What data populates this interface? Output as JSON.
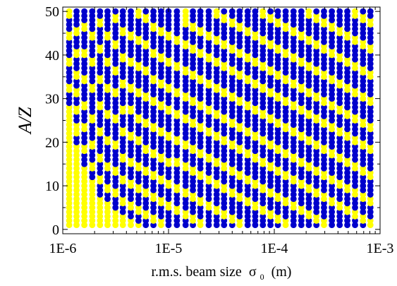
{
  "chart_data": {
    "type": "scatter",
    "title": "",
    "xlabel": "r.m.s. beam size",
    "xlabel_symbol": "σ",
    "xlabel_subscript": "0",
    "xlabel_unit": "(m)",
    "ylabel": "A/Z",
    "x_scale": "log",
    "xlim": [
      1e-06,
      0.001
    ],
    "ylim": [
      -1,
      51
    ],
    "x_ticks": [
      {
        "value": 1e-06,
        "label": "1E-6"
      },
      {
        "value": 1e-05,
        "label": "1E-5"
      },
      {
        "value": 0.0001,
        "label": "1E-4"
      },
      {
        "value": 0.001,
        "label": "1E-3"
      }
    ],
    "y_ticks": [
      {
        "value": 0,
        "label": "0"
      },
      {
        "value": 10,
        "label": "10"
      },
      {
        "value": 20,
        "label": "20"
      },
      {
        "value": 30,
        "label": "30"
      },
      {
        "value": 40,
        "label": "40"
      },
      {
        "value": 50,
        "label": "50"
      }
    ],
    "grid": false,
    "legend": "none",
    "colors": {
      "blue": "#0000cc",
      "yellow": "#ffff00"
    },
    "y_range": [
      1,
      50
    ],
    "x": [
      1.15e-06,
      1.35e-06,
      1.6e-06,
      1.9e-06,
      2.25e-06,
      2.65e-06,
      3.15e-06,
      3.7e-06,
      4.4e-06,
      5.2e-06,
      6.1e-06,
      7.2e-06,
      8.5e-06,
      1e-05,
      1.2e-05,
      1.45e-05,
      1.7e-05,
      2e-05,
      2.4e-05,
      2.85e-05,
      3.35e-05,
      4e-05,
      4.7e-05,
      5.6e-05,
      6.6e-05,
      7.8e-05,
      9.2e-05,
      0.000108,
      0.000128,
      0.000152,
      0.00018,
      0.000212,
      0.00025,
      0.000295,
      0.00035,
      0.000415,
      0.00049,
      0.00058,
      0.00069,
      0.00081
    ],
    "yellow_ranges": [
      [
        [
          1,
          28
        ],
        [
          32,
          33
        ],
        [
          38,
          39
        ],
        [
          44,
          45
        ],
        [
          49,
          50
        ]
      ],
      [
        [
          1,
          19
        ],
        [
          22,
          24
        ],
        [
          27,
          28
        ],
        [
          31,
          32
        ],
        [
          35,
          36
        ],
        [
          40,
          41
        ],
        [
          45,
          46
        ]
      ],
      [
        [
          1,
          14
        ],
        [
          18,
          19
        ],
        [
          23,
          24
        ],
        [
          28,
          29
        ],
        [
          34,
          35
        ],
        [
          40,
          41
        ],
        [
          46,
          47
        ]
      ],
      [
        [
          1,
          11
        ],
        [
          14,
          15
        ],
        [
          19,
          20
        ],
        [
          25,
          26
        ],
        [
          32,
          33
        ],
        [
          38,
          39
        ],
        [
          44,
          45
        ]
      ],
      [
        [
          1,
          7
        ],
        [
          11,
          12
        ],
        [
          16,
          17
        ],
        [
          22,
          23
        ],
        [
          28,
          29
        ],
        [
          34,
          35
        ],
        [
          41,
          42
        ],
        [
          47,
          48
        ]
      ],
      [
        [
          1,
          6
        ],
        [
          9,
          10
        ],
        [
          14,
          15
        ],
        [
          20,
          21
        ],
        [
          26,
          27
        ],
        [
          32,
          33
        ],
        [
          38,
          39
        ],
        [
          44,
          45
        ]
      ],
      [
        [
          1,
          4
        ],
        [
          8,
          9
        ],
        [
          13,
          14
        ],
        [
          19,
          20
        ],
        [
          25,
          26
        ],
        [
          31,
          32
        ],
        [
          36,
          37
        ],
        [
          42,
          43
        ],
        [
          48,
          49
        ]
      ],
      [
        [
          1,
          3
        ],
        [
          6,
          7
        ],
        [
          11,
          12
        ],
        [
          16,
          17
        ],
        [
          22,
          23
        ],
        [
          27,
          28
        ],
        [
          33,
          34
        ],
        [
          39,
          40
        ],
        [
          45,
          46
        ]
      ],
      [
        [
          1,
          2
        ],
        [
          5,
          6
        ],
        [
          10,
          11
        ],
        [
          15,
          16
        ],
        [
          21,
          22
        ],
        [
          27,
          28
        ],
        [
          32,
          33
        ],
        [
          38,
          39
        ],
        [
          44,
          45
        ]
      ],
      [
        [
          1,
          1
        ],
        [
          4,
          5
        ],
        [
          9,
          10
        ],
        [
          14,
          15
        ],
        [
          20,
          21
        ],
        [
          25,
          26
        ],
        [
          31,
          32
        ],
        [
          37,
          38
        ],
        [
          43,
          44
        ],
        [
          49,
          50
        ]
      ],
      [
        [
          3,
          4
        ],
        [
          8,
          9
        ],
        [
          13,
          14
        ],
        [
          18,
          19
        ],
        [
          24,
          25
        ],
        [
          30,
          31
        ],
        [
          36,
          37
        ],
        [
          42,
          43
        ],
        [
          48,
          49
        ]
      ],
      [
        [
          2,
          3
        ],
        [
          7,
          8
        ],
        [
          12,
          13
        ],
        [
          17,
          18
        ],
        [
          23,
          24
        ],
        [
          29,
          30
        ],
        [
          34,
          35
        ],
        [
          40,
          41
        ],
        [
          46,
          47
        ]
      ],
      [
        [
          1,
          2
        ],
        [
          6,
          7
        ],
        [
          11,
          12
        ],
        [
          16,
          17
        ],
        [
          22,
          23
        ],
        [
          28,
          29
        ],
        [
          33,
          34
        ],
        [
          39,
          40
        ],
        [
          45,
          46
        ]
      ],
      [
        [
          5,
          6
        ],
        [
          10,
          11
        ],
        [
          15,
          16
        ],
        [
          21,
          22
        ],
        [
          27,
          28
        ],
        [
          32,
          33
        ],
        [
          38,
          39
        ],
        [
          44,
          45
        ]
      ],
      [
        [
          4,
          5
        ],
        [
          9,
          10
        ],
        [
          15,
          16
        ],
        [
          20,
          21
        ],
        [
          26,
          27
        ],
        [
          31,
          32
        ],
        [
          37,
          38
        ],
        [
          43,
          44
        ]
      ],
      [
        [
          3,
          4
        ],
        [
          8,
          9
        ],
        [
          14,
          15
        ],
        [
          19,
          20
        ],
        [
          25,
          26
        ],
        [
          30,
          31
        ],
        [
          36,
          37
        ],
        [
          42,
          43
        ],
        [
          47,
          50
        ]
      ],
      [
        [
          2,
          3
        ],
        [
          7,
          8
        ],
        [
          13,
          14
        ],
        [
          18,
          19
        ],
        [
          24,
          25
        ],
        [
          29,
          30
        ],
        [
          35,
          36
        ],
        [
          41,
          42
        ],
        [
          46,
          47
        ]
      ],
      [
        [
          1,
          2
        ],
        [
          6,
          7
        ],
        [
          12,
          13
        ],
        [
          17,
          18
        ],
        [
          23,
          24
        ],
        [
          28,
          29
        ],
        [
          34,
          35
        ],
        [
          40,
          41
        ],
        [
          45,
          46
        ]
      ],
      [
        [
          5,
          6
        ],
        [
          11,
          12
        ],
        [
          16,
          17
        ],
        [
          22,
          23
        ],
        [
          27,
          28
        ],
        [
          33,
          34
        ],
        [
          39,
          40
        ],
        [
          44,
          45
        ]
      ],
      [
        [
          4,
          5
        ],
        [
          10,
          11
        ],
        [
          15,
          16
        ],
        [
          21,
          22
        ],
        [
          26,
          27
        ],
        [
          32,
          33
        ],
        [
          38,
          39
        ],
        [
          43,
          44
        ],
        [
          49,
          50
        ]
      ],
      [
        [
          3,
          4
        ],
        [
          9,
          10
        ],
        [
          14,
          15
        ],
        [
          20,
          21
        ],
        [
          25,
          26
        ],
        [
          31,
          32
        ],
        [
          37,
          38
        ],
        [
          42,
          43
        ],
        [
          48,
          49
        ]
      ],
      [
        [
          2,
          3
        ],
        [
          8,
          9
        ],
        [
          13,
          14
        ],
        [
          19,
          20
        ],
        [
          24,
          25
        ],
        [
          30,
          31
        ],
        [
          36,
          37
        ],
        [
          41,
          42
        ],
        [
          47,
          48
        ]
      ],
      [
        [
          1,
          2
        ],
        [
          7,
          8
        ],
        [
          12,
          13
        ],
        [
          18,
          19
        ],
        [
          23,
          24
        ],
        [
          29,
          30
        ],
        [
          35,
          36
        ],
        [
          40,
          41
        ],
        [
          46,
          47
        ]
      ],
      [
        [
          6,
          7
        ],
        [
          11,
          12
        ],
        [
          17,
          18
        ],
        [
          22,
          23
        ],
        [
          28,
          29
        ],
        [
          34,
          35
        ],
        [
          39,
          40
        ],
        [
          45,
          46
        ]
      ],
      [
        [
          5,
          6
        ],
        [
          10,
          11
        ],
        [
          16,
          17
        ],
        [
          21,
          22
        ],
        [
          27,
          28
        ],
        [
          33,
          34
        ],
        [
          38,
          39
        ],
        [
          44,
          45
        ]
      ],
      [
        [
          4,
          5
        ],
        [
          9,
          10
        ],
        [
          15,
          16
        ],
        [
          20,
          21
        ],
        [
          26,
          27
        ],
        [
          32,
          33
        ],
        [
          37,
          38
        ],
        [
          43,
          44
        ],
        [
          49,
          50
        ]
      ],
      [
        [
          3,
          4
        ],
        [
          8,
          9
        ],
        [
          14,
          15
        ],
        [
          19,
          20
        ],
        [
          25,
          26
        ],
        [
          31,
          32
        ],
        [
          36,
          37
        ],
        [
          42,
          43
        ],
        [
          48,
          49
        ]
      ],
      [
        [
          2,
          3
        ],
        [
          7,
          8
        ],
        [
          13,
          14
        ],
        [
          18,
          19
        ],
        [
          24,
          25
        ],
        [
          30,
          31
        ],
        [
          35,
          36
        ],
        [
          41,
          42
        ],
        [
          47,
          48
        ]
      ],
      [
        [
          1,
          2
        ],
        [
          6,
          7
        ],
        [
          12,
          13
        ],
        [
          17,
          18
        ],
        [
          23,
          24
        ],
        [
          29,
          30
        ],
        [
          34,
          35
        ],
        [
          40,
          41
        ],
        [
          46,
          47
        ]
      ],
      [
        [
          5,
          6
        ],
        [
          11,
          12
        ],
        [
          16,
          17
        ],
        [
          22,
          23
        ],
        [
          28,
          29
        ],
        [
          33,
          34
        ],
        [
          39,
          40
        ],
        [
          45,
          46
        ]
      ],
      [
        [
          4,
          5
        ],
        [
          10,
          11
        ],
        [
          15,
          16
        ],
        [
          21,
          22
        ],
        [
          27,
          28
        ],
        [
          32,
          33
        ],
        [
          38,
          39
        ],
        [
          44,
          45
        ]
      ],
      [
        [
          3,
          4
        ],
        [
          9,
          10
        ],
        [
          14,
          15
        ],
        [
          20,
          21
        ],
        [
          26,
          27
        ],
        [
          31,
          32
        ],
        [
          37,
          38
        ],
        [
          43,
          44
        ],
        [
          49,
          50
        ]
      ],
      [
        [
          2,
          3
        ],
        [
          8,
          9
        ],
        [
          13,
          14
        ],
        [
          19,
          20
        ],
        [
          25,
          26
        ],
        [
          30,
          31
        ],
        [
          36,
          37
        ],
        [
          42,
          43
        ],
        [
          48,
          49
        ]
      ],
      [
        [
          1,
          2
        ],
        [
          7,
          8
        ],
        [
          12,
          13
        ],
        [
          18,
          19
        ],
        [
          24,
          25
        ],
        [
          29,
          30
        ],
        [
          35,
          36
        ],
        [
          41,
          42
        ],
        [
          47,
          48
        ]
      ],
      [
        [
          6,
          7
        ],
        [
          11,
          12
        ],
        [
          17,
          18
        ],
        [
          23,
          24
        ],
        [
          28,
          29
        ],
        [
          34,
          35
        ],
        [
          40,
          41
        ],
        [
          46,
          47
        ]
      ],
      [
        [
          5,
          6
        ],
        [
          10,
          11
        ],
        [
          16,
          17
        ],
        [
          22,
          23
        ],
        [
          27,
          28
        ],
        [
          33,
          34
        ],
        [
          39,
          40
        ],
        [
          45,
          46
        ]
      ],
      [
        [
          4,
          5
        ],
        [
          9,
          10
        ],
        [
          15,
          16
        ],
        [
          21,
          22
        ],
        [
          26,
          27
        ],
        [
          32,
          33
        ],
        [
          38,
          39
        ],
        [
          44,
          45
        ]
      ],
      [
        [
          3,
          4
        ],
        [
          8,
          9
        ],
        [
          14,
          15
        ],
        [
          20,
          21
        ],
        [
          25,
          26
        ],
        [
          31,
          32
        ],
        [
          37,
          38
        ],
        [
          43,
          44
        ],
        [
          49,
          50
        ]
      ],
      [
        [
          2,
          3
        ],
        [
          7,
          8
        ],
        [
          13,
          14
        ],
        [
          19,
          20
        ],
        [
          24,
          25
        ],
        [
          30,
          31
        ],
        [
          36,
          37
        ],
        [
          42,
          43
        ],
        [
          48,
          49
        ]
      ],
      [
        [
          1,
          2
        ],
        [
          6,
          7
        ],
        [
          12,
          13
        ],
        [
          18,
          19
        ],
        [
          23,
          24
        ],
        [
          29,
          30
        ],
        [
          35,
          36
        ],
        [
          41,
          42
        ],
        [
          47,
          48
        ]
      ]
    ]
  }
}
